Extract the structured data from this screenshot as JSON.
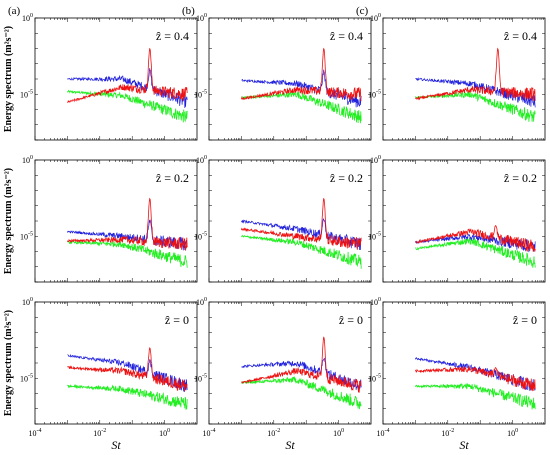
{
  "chart_data": {
    "type": "line",
    "y_label": "Energy spectrum (m²s⁻²)",
    "x_label": "St",
    "x_scale": "log",
    "y_scale": "log",
    "x_range": [
      0.0001,
      10
    ],
    "y_range": [
      1e-08,
      1
    ],
    "x_ticks": [
      {
        "value": 0.0001,
        "base": "10",
        "exp": "-4"
      },
      {
        "value": 0.01,
        "base": "10",
        "exp": "-2"
      },
      {
        "value": 1,
        "base": "10",
        "exp": "0"
      }
    ],
    "y_ticks": [
      {
        "value": 1,
        "base": "10",
        "exp": "0"
      },
      {
        "value": 1e-05,
        "base": "10",
        "exp": "-5"
      }
    ],
    "series_colors": [
      "#2222dd",
      "#ee1111",
      "#22ee22"
    ],
    "columns": [
      "(a)",
      "(b)",
      "(c)"
    ],
    "z_label_prefix": "ẑ = ",
    "rows": [
      "0.4",
      "0.2",
      "0"
    ],
    "panels": [
      {
        "col": "(a)",
        "z": "0.4",
        "peak_st": 0.35,
        "peak_height": 0.01,
        "series": [
          {
            "color": "blue",
            "start": 0.0001,
            "mid": 0.0001,
            "end": 3e-06
          },
          {
            "color": "red",
            "start": 3e-06,
            "mid": 3e-05,
            "end": 1e-05
          },
          {
            "color": "green",
            "start": 1.5e-05,
            "mid": 8e-06,
            "end": 3e-07
          }
        ]
      },
      {
        "col": "(b)",
        "z": "0.4",
        "peak_st": 0.35,
        "peak_height": 0.01,
        "series": [
          {
            "color": "blue",
            "start": 8e-05,
            "mid": 5e-05,
            "end": 3e-06
          },
          {
            "color": "red",
            "start": 5e-06,
            "mid": 2e-05,
            "end": 1e-05
          },
          {
            "color": "green",
            "start": 6e-06,
            "mid": 1e-05,
            "end": 3e-07
          }
        ]
      },
      {
        "col": "(c)",
        "z": "0.4",
        "peak_st": 0.35,
        "peak_height": 0.01,
        "series": [
          {
            "color": "blue",
            "start": 0.0001,
            "mid": 5e-05,
            "end": 3e-06
          },
          {
            "color": "red",
            "start": 5e-06,
            "mid": 2e-05,
            "end": 1e-05
          },
          {
            "color": "green",
            "start": 6e-06,
            "mid": 1e-05,
            "end": 3e-07
          }
        ]
      },
      {
        "col": "(a)",
        "z": "0.2",
        "peak_st": 0.35,
        "peak_height": 0.003,
        "series": [
          {
            "color": "blue",
            "start": 2e-05,
            "mid": 1e-05,
            "end": 3e-06
          },
          {
            "color": "red",
            "start": 5e-06,
            "mid": 6e-06,
            "end": 3e-06
          },
          {
            "color": "green",
            "start": 4e-06,
            "mid": 3e-06,
            "end": 2e-07
          }
        ]
      },
      {
        "col": "(b)",
        "z": "0.2",
        "peak_st": 0.35,
        "peak_height": 0.003,
        "series": [
          {
            "color": "blue",
            "start": 0.0001,
            "mid": 3e-05,
            "end": 3e-06
          },
          {
            "color": "red",
            "start": 3e-05,
            "mid": 1e-05,
            "end": 3e-06
          },
          {
            "color": "green",
            "start": 1e-05,
            "mid": 4e-06,
            "end": 2e-07
          }
        ]
      },
      {
        "col": "(c)",
        "z": "0.2",
        "peak_st": 0.3,
        "peak_height": 5e-05,
        "series": [
          {
            "color": "red",
            "start": 4e-06,
            "mid": 2e-05,
            "end": 2e-06
          },
          {
            "color": "blue",
            "start": 4e-06,
            "mid": 1e-05,
            "end": 2e-06
          },
          {
            "color": "green",
            "start": 1.5e-06,
            "mid": 5e-06,
            "end": 2e-07
          }
        ]
      },
      {
        "col": "(a)",
        "z": "0",
        "peak_st": 0.35,
        "peak_height": 0.001,
        "series": [
          {
            "color": "blue",
            "start": 0.0003,
            "mid": 0.0001,
            "end": 3e-06
          },
          {
            "color": "red",
            "start": 5e-05,
            "mid": 3e-05,
            "end": 3e-06
          },
          {
            "color": "green",
            "start": 3e-06,
            "mid": 2e-06,
            "end": 2e-07
          }
        ]
      },
      {
        "col": "(b)",
        "z": "0",
        "peak_st": 0.35,
        "peak_height": 0.005,
        "series": [
          {
            "color": "blue",
            "start": 6e-05,
            "mid": 0.0001,
            "end": 3e-06
          },
          {
            "color": "red",
            "start": 5e-06,
            "mid": 3e-05,
            "end": 3e-06
          },
          {
            "color": "green",
            "start": 5e-06,
            "mid": 8e-06,
            "end": 2e-07
          }
        ]
      },
      {
        "col": "(c)",
        "z": "0",
        "peak_st": 0.3,
        "peak_height": 5e-05,
        "series": [
          {
            "color": "blue",
            "start": 0.0002,
            "mid": 5e-05,
            "end": 3e-06
          },
          {
            "color": "red",
            "start": 3e-05,
            "mid": 4e-05,
            "end": 3e-06
          },
          {
            "color": "green",
            "start": 3e-06,
            "mid": 3e-06,
            "end": 2e-07
          }
        ]
      }
    ]
  }
}
